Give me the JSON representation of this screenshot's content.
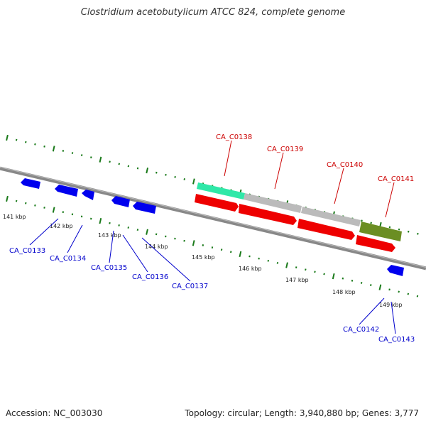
{
  "title": "Clostridium acetobutylicum ATCC 824, complete genome",
  "footer": {
    "accession": "Accession: NC_003030",
    "summary": "Topology: circular; Length: 3,940,880 bp; Genes: 3,777"
  },
  "colors": {
    "backbone": "#888888",
    "tick": "#1a7a1a",
    "forward_label": "#cc0000",
    "reverse_label": "#0000cc",
    "reverse_gene": "#0000ee",
    "forward_gene": "#ee0000",
    "cds_teal": "#2fe8a8",
    "cds_gray": "#bbbbbb",
    "cds_olive": "#6b8e23"
  },
  "scale_labels": [
    "141 kbp",
    "142 kbp",
    "143 kbp",
    "144 kbp",
    "145 kbp",
    "146 kbp",
    "147 kbp",
    "148 kbp",
    "149 kbp"
  ],
  "forward_labels": [
    "CA_C0138",
    "CA_C0139",
    "CA_C0140",
    "CA_C0141"
  ],
  "reverse_labels": [
    "CA_C0133",
    "CA_C0134",
    "CA_C0135",
    "CA_C0136",
    "CA_C0137",
    "CA_C0142",
    "CA_C0143"
  ]
}
